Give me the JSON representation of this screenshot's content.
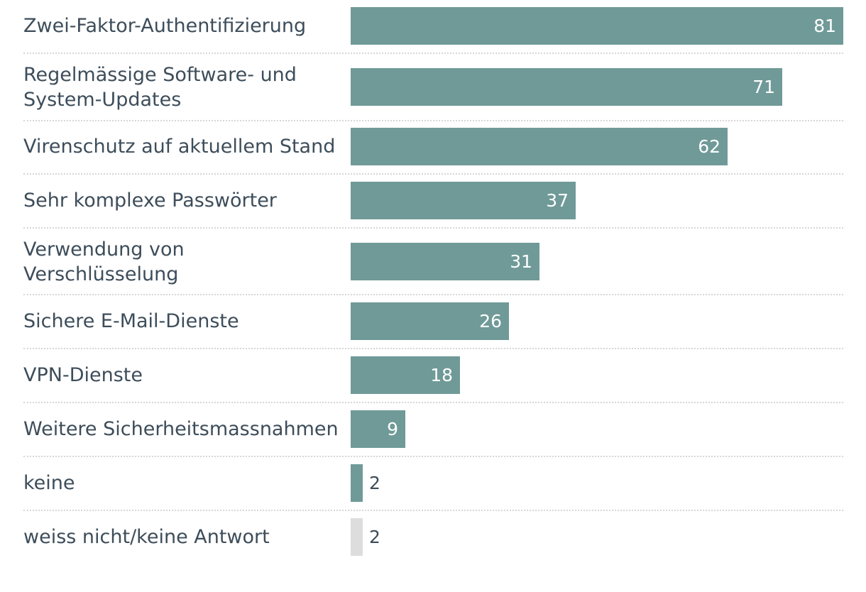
{
  "chart_data": {
    "type": "bar",
    "orientation": "horizontal",
    "categories": [
      "Zwei-Faktor-Authentifizierung",
      "Regelmässige Software- und System-Updates",
      "Virenschutz auf aktuellem Stand",
      "Sehr komplexe Passwörter",
      "Verwendung von Verschlüsselung",
      "Sichere E-Mail-Dienste",
      "VPN-Dienste",
      "Weitere Sicherheitsmassnahmen",
      "keine",
      "weiss nicht/keine Antwort"
    ],
    "label_lines": [
      [
        "Zwei-Faktor-Authentifizierung"
      ],
      [
        "Regelmässige Software- und",
        "System-Updates"
      ],
      [
        "Virenschutz auf aktuellem Stand"
      ],
      [
        "Sehr komplexe Passwörter"
      ],
      [
        "Verwendung von",
        "Verschlüsselung"
      ],
      [
        "Sichere E-Mail-Dienste"
      ],
      [
        "VPN-Dienste"
      ],
      [
        "Weitere Sicherheitsmassnahmen"
      ],
      [
        "keine"
      ],
      [
        "weiss nicht/keine Antwort"
      ]
    ],
    "values": [
      81,
      71,
      62,
      37,
      31,
      26,
      18,
      9,
      2,
      2
    ],
    "colors": [
      "#6f9a98",
      "#6f9a98",
      "#6f9a98",
      "#6f9a98",
      "#6f9a98",
      "#6f9a98",
      "#6f9a98",
      "#6f9a98",
      "#6f9a98",
      "#dddddd"
    ],
    "xlim": [
      0,
      81
    ],
    "grid": false,
    "legend": "none",
    "data_labels": true
  }
}
